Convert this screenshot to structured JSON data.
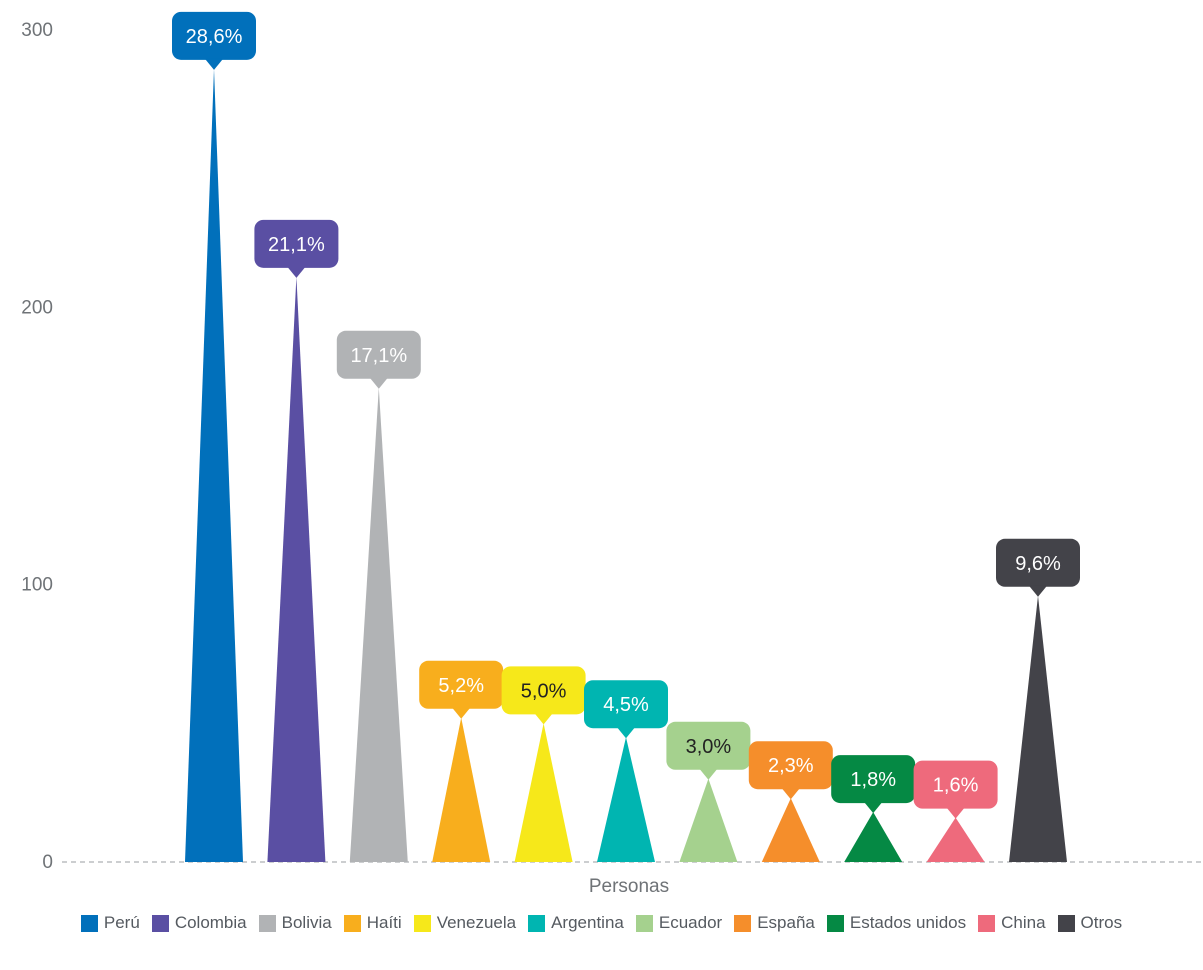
{
  "chart_data": {
    "type": "bar",
    "xlabel": "Personas",
    "ylabel": "",
    "ylim": [
      0,
      300
    ],
    "yticks": [
      0,
      100,
      200,
      300
    ],
    "grid": false,
    "legend_position": "bottom",
    "series": [
      {
        "name": "Perú",
        "value": 286,
        "label": "28,6%",
        "color": "#0170bb",
        "label_text_color": "#ffffff"
      },
      {
        "name": "Colombia",
        "value": 211,
        "label": "21,1%",
        "color": "#5a4fa3",
        "label_text_color": "#ffffff"
      },
      {
        "name": "Bolivia",
        "value": 171,
        "label": "17,1%",
        "color": "#b1b3b5",
        "label_text_color": "#ffffff"
      },
      {
        "name": "Haíti",
        "value": 52,
        "label": "5,2%",
        "color": "#f8ae1d",
        "label_text_color": "#ffffff"
      },
      {
        "name": "Venezuela",
        "value": 50,
        "label": "5,0%",
        "color": "#f6e81a",
        "label_text_color": "#222222"
      },
      {
        "name": "Argentina",
        "value": 45,
        "label": "4,5%",
        "color": "#00b5b1",
        "label_text_color": "#ffffff"
      },
      {
        "name": "Ecuador",
        "value": 30,
        "label": "3,0%",
        "color": "#a5d18e",
        "label_text_color": "#222222"
      },
      {
        "name": "España",
        "value": 23,
        "label": "2,3%",
        "color": "#f58e2b",
        "label_text_color": "#ffffff"
      },
      {
        "name": "Estados unidos",
        "value": 18,
        "label": "1,8%",
        "color": "#058944",
        "label_text_color": "#ffffff"
      },
      {
        "name": "China",
        "value": 16,
        "label": "1,6%",
        "color": "#ee6a7c",
        "label_text_color": "#ffffff"
      },
      {
        "name": "Otros",
        "value": 96,
        "label": "9,6%",
        "color": "#434349",
        "label_text_color": "#ffffff"
      }
    ]
  }
}
